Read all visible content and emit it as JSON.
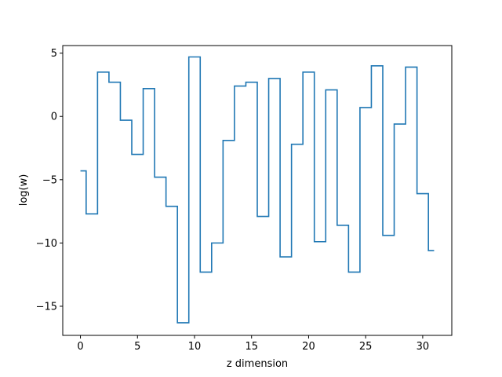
{
  "chart_data": {
    "type": "line",
    "drawstyle": "steps-mid",
    "xlabel": "z dimension",
    "ylabel": "log(w)",
    "xlim": [
      -1.55,
      32.55
    ],
    "ylim": [
      -17.3,
      5.6
    ],
    "xticks": [
      0,
      5,
      10,
      15,
      20,
      25,
      30
    ],
    "xtick_labels": [
      "0",
      "5",
      "10",
      "15",
      "20",
      "25",
      "30"
    ],
    "yticks": [
      5,
      0,
      -5,
      -10,
      -15
    ],
    "ytick_labels": [
      "5",
      "0",
      "−5",
      "−10",
      "−15"
    ],
    "grid": false,
    "series": [
      {
        "color": "#1f77b4",
        "x": [
          0,
          1,
          2,
          3,
          4,
          5,
          6,
          7,
          8,
          9,
          10,
          11,
          12,
          13,
          14,
          15,
          16,
          17,
          18,
          19,
          20,
          21,
          22,
          23,
          24,
          25,
          26,
          27,
          28,
          29,
          30,
          31
        ],
        "y": [
          -4.3,
          -7.7,
          3.5,
          2.7,
          -0.3,
          -3.0,
          2.2,
          -4.8,
          -7.1,
          -16.3,
          4.7,
          -12.3,
          -10.0,
          -1.9,
          2.4,
          2.7,
          -7.9,
          3.0,
          -11.1,
          -2.2,
          3.5,
          -9.9,
          2.1,
          -8.6,
          -12.3,
          0.7,
          4.0,
          -9.4,
          -0.6,
          3.9,
          -6.1,
          -10.6
        ]
      }
    ]
  }
}
